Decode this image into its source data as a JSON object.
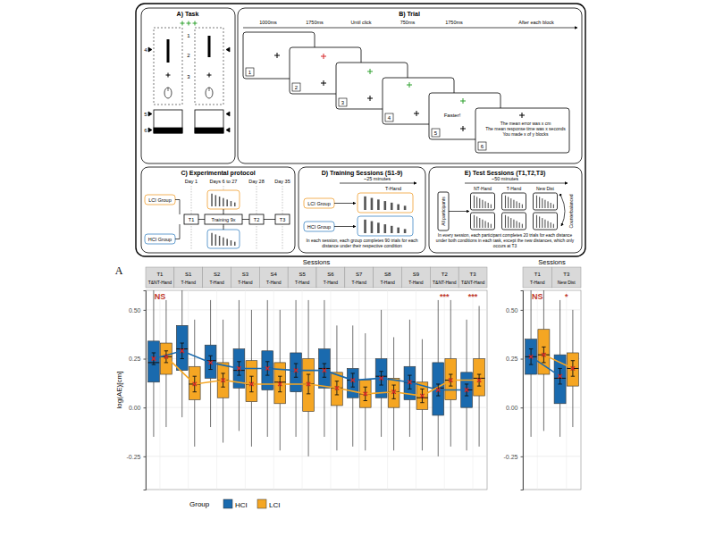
{
  "chart_data": [
    {
      "type": "box",
      "panel": "A",
      "title": "Sessions",
      "categories": [
        "T1",
        "S1",
        "S2",
        "S3",
        "S4",
        "S5",
        "S6",
        "S7",
        "S8",
        "S9",
        "T2",
        "T3"
      ],
      "category_conditions": [
        "T&NT-Hand",
        "T-Hand",
        "T-Hand",
        "T-Hand",
        "T-Hand",
        "T-Hand",
        "T-Hand",
        "T-Hand",
        "T-Hand",
        "T-Hand",
        "T&NT-Hand",
        "T&NT-Hand"
      ],
      "annotations": [
        {
          "category": "T1",
          "text": "NS"
        },
        {
          "category": "T2",
          "text": "***"
        },
        {
          "category": "T3",
          "text": "***"
        }
      ],
      "y_label": "log(AE)[cm]",
      "ylim": [
        -0.42,
        0.6
      ],
      "yticks": [
        -0.25,
        {
          "value": 0,
          "label": "0.00"
        },
        0.25,
        {
          "value": 0.5,
          "label": "0.50"
        }
      ],
      "grid": true,
      "marker": "x",
      "legend": "bottom",
      "legend_title": "Group",
      "series": [
        {
          "name": "HCI",
          "color": "#1a6aae",
          "whisker_low": [
            -0.15,
            -0.05,
            -0.1,
            -0.12,
            -0.15,
            -0.15,
            -0.15,
            -0.2,
            -0.15,
            -0.15,
            -0.25,
            -0.22
          ],
          "q1": [
            0.13,
            0.19,
            0.15,
            0.1,
            0.09,
            0.08,
            0.1,
            0.05,
            0.05,
            0.04,
            -0.04,
            0.0
          ],
          "median": [
            0.23,
            0.3,
            0.24,
            0.19,
            0.2,
            0.19,
            0.2,
            0.14,
            0.16,
            0.13,
            0.1,
            0.09
          ],
          "q3": [
            0.34,
            0.42,
            0.32,
            0.3,
            0.29,
            0.28,
            0.3,
            0.2,
            0.25,
            0.21,
            0.23,
            0.18
          ],
          "whisker_high": [
            0.6,
            0.6,
            0.55,
            0.55,
            0.55,
            0.55,
            0.55,
            0.42,
            0.5,
            0.45,
            0.55,
            0.45
          ],
          "mean": [
            0.25,
            0.29,
            0.23,
            0.2,
            0.2,
            0.19,
            0.19,
            0.14,
            0.15,
            0.13,
            0.09,
            0.09
          ],
          "error": [
            0.03,
            0.04,
            0.035,
            0.035,
            0.035,
            0.035,
            0.035,
            0.035,
            0.035,
            0.035,
            0.03,
            0.03
          ]
        },
        {
          "name": "LCI",
          "color": "#f5a623",
          "whisker_low": [
            -0.1,
            -0.2,
            -0.18,
            -0.2,
            -0.22,
            -0.25,
            -0.22,
            -0.22,
            -0.22,
            -0.22,
            -0.2,
            -0.2
          ],
          "q1": [
            0.17,
            0.04,
            0.05,
            0.03,
            0.02,
            -0.02,
            0.01,
            0.0,
            0.0,
            -0.01,
            0.04,
            0.06
          ],
          "median": [
            0.26,
            0.12,
            0.14,
            0.12,
            0.13,
            0.12,
            0.1,
            0.07,
            0.08,
            0.05,
            0.14,
            0.15
          ],
          "q3": [
            0.33,
            0.21,
            0.23,
            0.24,
            0.23,
            0.25,
            0.18,
            0.14,
            0.15,
            0.13,
            0.25,
            0.25
          ],
          "whisker_high": [
            0.55,
            0.45,
            0.45,
            0.5,
            0.5,
            0.55,
            0.42,
            0.38,
            0.36,
            0.35,
            0.55,
            0.52
          ],
          "mean": [
            0.26,
            0.12,
            0.14,
            0.12,
            0.12,
            0.12,
            0.1,
            0.07,
            0.08,
            0.06,
            0.14,
            0.14
          ],
          "error": [
            0.03,
            0.04,
            0.035,
            0.04,
            0.04,
            0.05,
            0.035,
            0.035,
            0.035,
            0.035,
            0.03,
            0.03
          ]
        }
      ]
    },
    {
      "type": "box",
      "title": "Sessions",
      "categories": [
        "T1",
        "T3"
      ],
      "category_conditions": [
        "T-Hand",
        "New Dist"
      ],
      "annotations": [
        {
          "category": "T1",
          "text": "NS"
        },
        {
          "category": "T3",
          "text": "*"
        }
      ],
      "ylim": [
        -0.42,
        0.6
      ],
      "yticks": [
        -0.25,
        {
          "value": 0,
          "label": "0.00"
        },
        0.25,
        {
          "value": 0.5,
          "label": "0.50"
        }
      ],
      "grid": true,
      "marker": "x",
      "series": [
        {
          "color": "#1a6aae",
          "whisker_low": [
            -0.15,
            -0.15
          ],
          "q1": [
            0.17,
            0.02
          ],
          "median": [
            0.26,
            0.15
          ],
          "q3": [
            0.35,
            0.27
          ],
          "whisker_high": [
            0.6,
            0.55
          ],
          "mean": [
            0.26,
            0.16
          ],
          "error": [
            0.04,
            0.04
          ]
        },
        {
          "color": "#f5a623",
          "whisker_low": [
            -0.12,
            -0.1
          ],
          "q1": [
            0.17,
            0.11
          ],
          "median": [
            0.27,
            0.2
          ],
          "q3": [
            0.4,
            0.28
          ],
          "whisker_high": [
            0.6,
            0.5
          ],
          "mean": [
            0.27,
            0.2
          ],
          "error": [
            0.04,
            0.04
          ]
        }
      ]
    }
  ],
  "diagram": {
    "task": {
      "title": "A) Task",
      "numbers": [
        "1",
        "2",
        "3",
        "4",
        "5",
        "6"
      ]
    },
    "trial": {
      "title": "B) Trial",
      "timings": [
        "1000ms",
        "1750ms",
        "Until click",
        "750ms",
        "1750ms",
        "After each block"
      ],
      "screens": [
        "1",
        "2",
        "3",
        "4",
        "5",
        "6"
      ],
      "feedback": "Faster!",
      "summary": [
        "The mean error was x cm",
        "The mean response time was x seconds",
        "You made x of y blocks"
      ]
    },
    "protocol": {
      "title": "C) Experimental protocol",
      "days": [
        "Day 1",
        "Days 6 to 27",
        "Day 28",
        "Day 35"
      ],
      "groups": [
        "LCI Group",
        "HCI Group"
      ],
      "sessions": [
        "T1",
        "Training 9x",
        "T2",
        "T3"
      ]
    },
    "training": {
      "title": "D) Training Sessions (S1-9)",
      "duration": "~25 minutes",
      "hand": "T-Hand",
      "groups": [
        "LCI Group",
        "HCI Group"
      ],
      "note": "In each session, each group completes 90 trials for each distance under their respective condition"
    },
    "test": {
      "title": "E) Test Sessions (T1,T2,T3)",
      "duration": "~50 minutes",
      "conditions": [
        "NT-Hand",
        "T-Hand",
        "New Dist"
      ],
      "participants": "All participants",
      "order": "Counterbalanced",
      "note": "In every session, each participant completes 20 trials for each distance under both conditions in each task, except the new distances, which only occurs at T3"
    }
  }
}
